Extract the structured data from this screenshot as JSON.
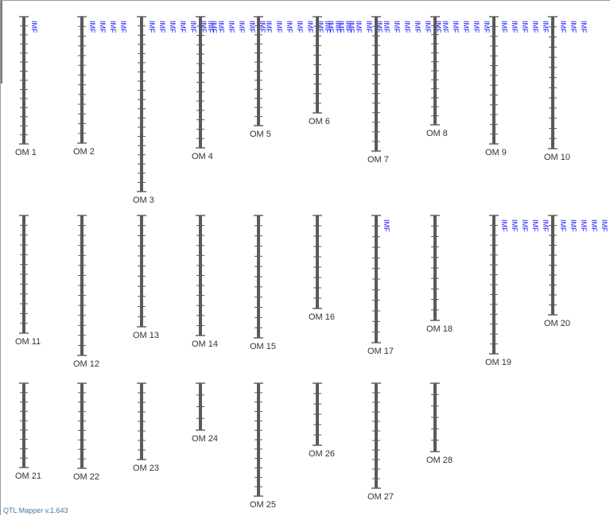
{
  "app": {
    "version_label": "QTL Mapper v.1.643"
  },
  "colors": {
    "bar": "#5a5a5a",
    "tick": "#5a5a5a",
    "qtl_text": "#1010ff",
    "label_text": "#333333"
  },
  "qtl_label_text": "IMF",
  "chromosomes": [
    {
      "label": "OM 1",
      "markers": 15,
      "qtl_count": 1
    },
    {
      "label": "OM 2",
      "markers": 14,
      "qtl_count": 4
    },
    {
      "label": "OM 3",
      "markers": 20,
      "qtl_count": 7
    },
    {
      "label": "OM 4",
      "markers": 15,
      "qtl_count": 6
    },
    {
      "label": "OM 5",
      "markers": 13,
      "qtl_count": 9
    },
    {
      "label": "OM 6",
      "markers": 11,
      "qtl_count": 6
    },
    {
      "label": "OM 7",
      "markers": 15,
      "qtl_count": 6
    },
    {
      "label": "OM 8",
      "markers": 13,
      "qtl_count": 5
    },
    {
      "label": "OM 9",
      "markers": 14,
      "qtl_count": 5
    },
    {
      "label": "OM 10",
      "markers": 14,
      "qtl_count": 3
    },
    {
      "label": "OM 11",
      "markers": 13,
      "qtl_count": 0
    },
    {
      "label": "OM 12",
      "markers": 15,
      "qtl_count": 0
    },
    {
      "label": "OM 13",
      "markers": 12,
      "qtl_count": 0
    },
    {
      "label": "OM 14",
      "markers": 13,
      "qtl_count": 0
    },
    {
      "label": "OM 15",
      "markers": 13,
      "qtl_count": 0
    },
    {
      "label": "OM 16",
      "markers": 10,
      "qtl_count": 0
    },
    {
      "label": "OM 17",
      "markers": 13,
      "qtl_count": 1
    },
    {
      "label": "OM 18",
      "markers": 11,
      "qtl_count": 0
    },
    {
      "label": "OM 19",
      "markers": 15,
      "qtl_count": 5
    },
    {
      "label": "OM 20",
      "markers": 11,
      "qtl_count": 6
    },
    {
      "label": "OM 21",
      "markers": 10,
      "qtl_count": 0
    },
    {
      "label": "OM 22",
      "markers": 10,
      "qtl_count": 0
    },
    {
      "label": "OM 23",
      "markers": 9,
      "qtl_count": 0
    },
    {
      "label": "OM 24",
      "markers": 5,
      "qtl_count": 0
    },
    {
      "label": "OM 25",
      "markers": 13,
      "qtl_count": 0
    },
    {
      "label": "OM 26",
      "markers": 7,
      "qtl_count": 0
    },
    {
      "label": "OM 27",
      "markers": 12,
      "qtl_count": 0
    },
    {
      "label": "OM 28",
      "markers": 7,
      "qtl_count": 0
    }
  ]
}
